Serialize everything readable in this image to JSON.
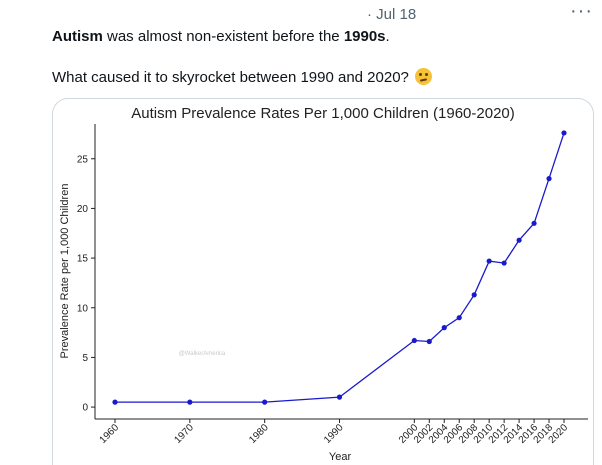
{
  "post": {
    "date": "· Jul 18",
    "more_icon": "more-horizontal-icon",
    "text_bold_1": "Autism",
    "text_mid_1": " was almost non-existent before the ",
    "text_bold_2": "1990s",
    "text_end_1": ".",
    "text_2": "What caused it to skyrocket between 1990 and 2020?",
    "emoji": "thinking-face-emoji"
  },
  "chart_data": {
    "type": "line",
    "title": "Autism Prevalence Rates Per 1,000 Children (1960-2020)",
    "xlabel": "Year",
    "ylabel": "Prevalence Rate per 1,000 Children",
    "watermark": "@WalkerAmerica",
    "x_ticks": [
      "1960",
      "1970",
      "1980",
      "1990",
      "2000",
      "2002",
      "2004",
      "2006",
      "2008",
      "2010",
      "2012",
      "2014",
      "2016",
      "2018",
      "2020"
    ],
    "y_ticks": [
      "0",
      "5",
      "10",
      "15",
      "20",
      "25"
    ],
    "ylim": [
      -1.2,
      28.5
    ],
    "grid": false,
    "line_color": "#1a1acd",
    "series": [
      {
        "x": [
          1960,
          1970,
          1980,
          1990,
          2000,
          2002,
          2004,
          2006,
          2008,
          2010,
          2012,
          2014,
          2016,
          2018,
          2020
        ],
        "values": [
          0.5,
          0.5,
          0.5,
          1.0,
          6.7,
          6.6,
          8.0,
          9.0,
          11.3,
          14.7,
          14.5,
          16.8,
          18.5,
          23.0,
          27.6
        ]
      }
    ]
  }
}
